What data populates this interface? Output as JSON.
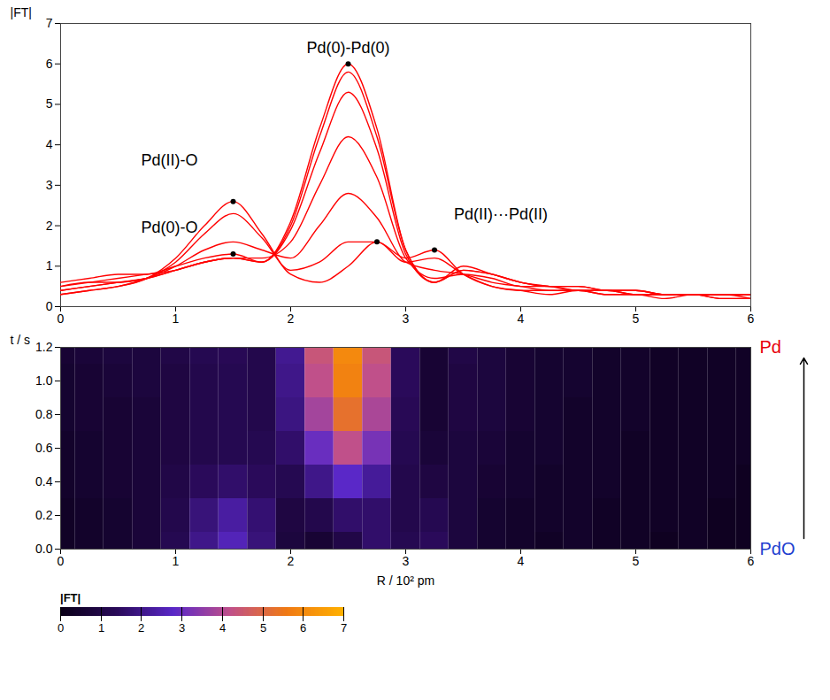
{
  "chart_data": {
    "type": "heatmap",
    "x": [
      0,
      0.25,
      0.5,
      0.75,
      1,
      1.25,
      1.5,
      1.75,
      2,
      2.25,
      2.5,
      2.75,
      3,
      3.25,
      3.5,
      3.75,
      4,
      4.25,
      4.5,
      4.75,
      5,
      5.25,
      5.5,
      5.75,
      6
    ],
    "y": [
      0,
      0.2,
      0.4,
      0.6,
      0.8,
      1,
      1.2
    ],
    "cells": [
      [
        0.3,
        0.4,
        0.5,
        0.7,
        1.2,
        2.0,
        2.6,
        1.8,
        0.8,
        0.6,
        1.0,
        1.6,
        1.2,
        1.4,
        0.8,
        0.5,
        0.4,
        0.3,
        0.4,
        0.3,
        0.3,
        0.2,
        0.3,
        0.2,
        0.2
      ],
      [
        0.3,
        0.4,
        0.5,
        0.7,
        1.1,
        1.8,
        2.3,
        1.7,
        0.9,
        1.1,
        1.6,
        1.6,
        1.1,
        1.2,
        0.8,
        0.5,
        0.4,
        0.4,
        0.4,
        0.3,
        0.3,
        0.3,
        0.3,
        0.2,
        0.2
      ],
      [
        0.4,
        0.5,
        0.6,
        0.7,
        1.0,
        1.4,
        1.6,
        1.4,
        1.2,
        2.0,
        2.8,
        2.2,
        1.1,
        0.9,
        0.8,
        0.6,
        0.5,
        0.4,
        0.4,
        0.4,
        0.3,
        0.3,
        0.3,
        0.3,
        0.2
      ],
      [
        0.4,
        0.5,
        0.6,
        0.7,
        0.9,
        1.1,
        1.2,
        1.2,
        1.6,
        3.0,
        4.2,
        3.2,
        1.2,
        0.7,
        0.8,
        0.7,
        0.5,
        0.5,
        0.4,
        0.4,
        0.3,
        0.3,
        0.3,
        0.3,
        0.3
      ],
      [
        0.5,
        0.6,
        0.6,
        0.7,
        0.9,
        1.1,
        1.2,
        1.1,
        1.9,
        3.8,
        5.3,
        3.9,
        1.3,
        0.6,
        0.9,
        0.8,
        0.6,
        0.5,
        0.4,
        0.4,
        0.4,
        0.3,
        0.3,
        0.3,
        0.3
      ],
      [
        0.5,
        0.6,
        0.7,
        0.8,
        0.9,
        1.1,
        1.2,
        1.1,
        2.0,
        4.2,
        5.8,
        4.2,
        1.4,
        0.6,
        0.9,
        0.8,
        0.6,
        0.5,
        0.5,
        0.4,
        0.4,
        0.3,
        0.3,
        0.3,
        0.3
      ],
      [
        0.6,
        0.7,
        0.8,
        0.8,
        1.0,
        1.2,
        1.3,
        1.1,
        2.1,
        4.4,
        6.0,
        4.4,
        1.4,
        0.6,
        1.0,
        0.8,
        0.6,
        0.5,
        0.5,
        0.4,
        0.4,
        0.3,
        0.3,
        0.3,
        0.3
      ]
    ],
    "xlabel": "R / 10² pm",
    "ylabel": "t / s",
    "xlim": [
      0,
      6
    ],
    "xticks": [
      0,
      1,
      2,
      3,
      4,
      5,
      6
    ],
    "ylim": [
      0,
      1.2
    ],
    "yticks": [
      {
        "value": 0,
        "label": "0.0"
      },
      0.2,
      0.4,
      0.6,
      0.8,
      {
        "value": 1,
        "label": "1.0"
      },
      1.2
    ],
    "zlabel": "|FT|",
    "zlim": [
      0,
      7
    ],
    "zticks": [
      0,
      1,
      2,
      3,
      4,
      5,
      6,
      7
    ],
    "color": "#ff0000",
    "annotations": [
      {
        "text": "Pd(0)-O",
        "x": [
          1.5
        ],
        "t": 1.2
      },
      {
        "text": "Pd(0)-Pd(0)",
        "x": [
          2.5
        ],
        "t": 1.2
      },
      {
        "text": "Pd(II)···Pd(II)",
        "x": [
          2.75,
          3.25
        ],
        "t": 0
      },
      {
        "text": "Pd(II)-O",
        "x": [
          1.5
        ],
        "t": 0
      }
    ],
    "states": [
      {
        "text": "PdO",
        "t": 0,
        "color": "#1f3fd0"
      },
      {
        "text": "Pd",
        "t": 1.2,
        "color": "#e8000b"
      }
    ]
  }
}
